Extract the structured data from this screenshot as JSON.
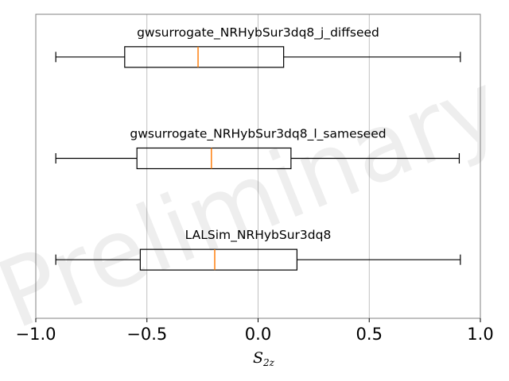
{
  "chart_data": {
    "type": "boxplot",
    "orientation": "horizontal",
    "xlabel": "S",
    "xlabel_sub": "2z",
    "xlim": [
      -1.0,
      1.0
    ],
    "xticks": [
      -1.0,
      -0.5,
      0.0,
      0.5,
      1.0
    ],
    "xtick_labels": [
      "−1.0",
      "−0.5",
      "0.0",
      "0.5",
      "1.0"
    ],
    "grid": "vertical",
    "watermark": "Preliminary",
    "colors": {
      "box": "#000000",
      "median": "#ff7f0e",
      "grid": "#b0b0b0",
      "frame": "#808080"
    },
    "series": [
      {
        "name": "gwsurrogate_NRHybSur3dq8_j_diffseed",
        "whisker_low": -0.91,
        "q1": -0.6,
        "median": -0.27,
        "q3": 0.115,
        "whisker_high": 0.91
      },
      {
        "name": "gwsurrogate_NRHybSur3dq8_l_sameseed",
        "whisker_low": -0.91,
        "q1": -0.545,
        "median": -0.21,
        "q3": 0.148,
        "whisker_high": 0.905
      },
      {
        "name": "LALSim_NRHybSur3dq8",
        "whisker_low": -0.91,
        "q1": -0.53,
        "median": -0.195,
        "q3": 0.175,
        "whisker_high": 0.91
      }
    ]
  }
}
